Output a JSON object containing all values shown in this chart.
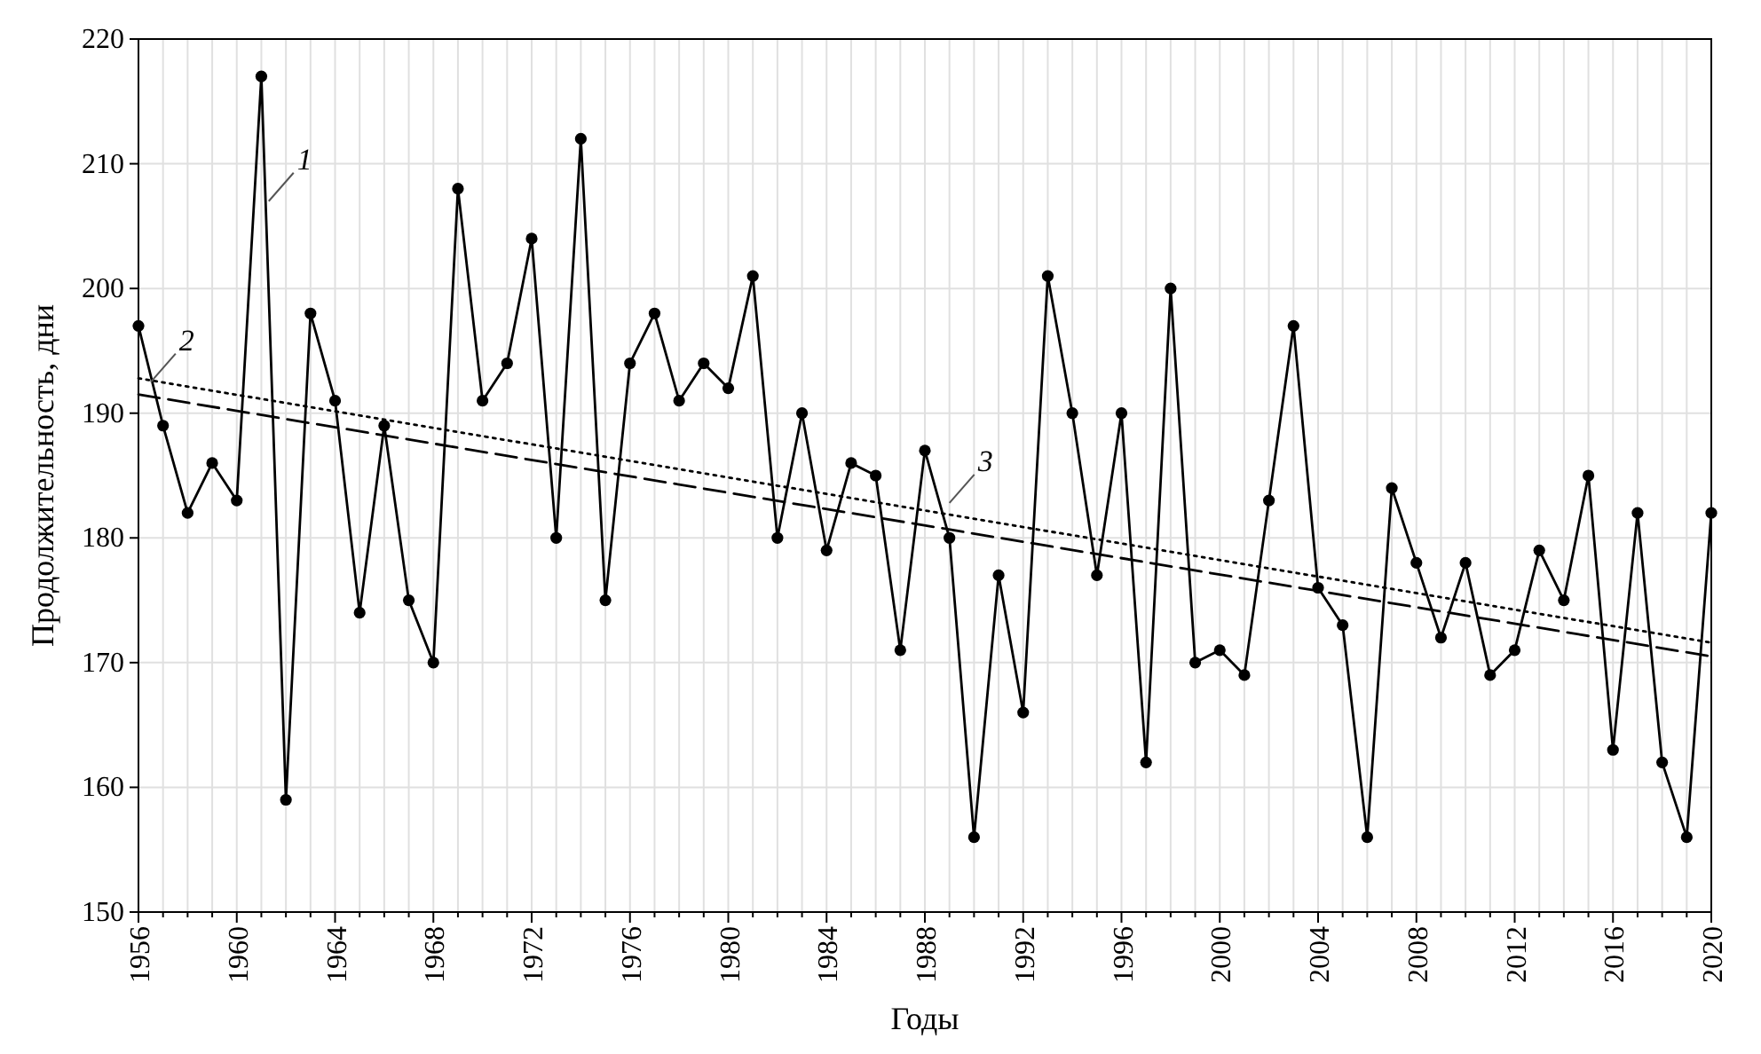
{
  "chart_data": {
    "type": "line",
    "xlabel": "Годы",
    "ylabel": "Продолжительность, дни",
    "x": [
      1956,
      1957,
      1958,
      1959,
      1960,
      1961,
      1962,
      1963,
      1964,
      1965,
      1966,
      1967,
      1968,
      1969,
      1970,
      1971,
      1972,
      1973,
      1974,
      1975,
      1976,
      1977,
      1978,
      1979,
      1980,
      1981,
      1982,
      1983,
      1984,
      1985,
      1986,
      1987,
      1988,
      1989,
      1990,
      1991,
      1992,
      1993,
      1994,
      1995,
      1996,
      1997,
      1998,
      1999,
      2000,
      2001,
      2002,
      2003,
      2004,
      2005,
      2006,
      2007,
      2008,
      2009,
      2010,
      2011,
      2012,
      2013,
      2014,
      2015,
      2016,
      2017,
      2018,
      2019,
      2020
    ],
    "series": [
      {
        "color": "#000000",
        "marker": "circle",
        "line_style": "solid",
        "values": [
          197,
          189,
          182,
          186,
          183,
          217,
          159,
          198,
          191,
          174,
          189,
          175,
          170,
          208,
          191,
          194,
          204,
          180,
          212,
          175,
          194,
          198,
          191,
          194,
          192,
          201,
          180,
          190,
          179,
          186,
          185,
          171,
          187,
          180,
          156,
          177,
          166,
          201,
          190,
          177,
          190,
          162,
          200,
          170,
          171,
          169,
          183,
          197,
          176,
          173,
          156,
          184,
          178,
          172,
          178,
          169,
          171,
          179,
          175,
          185,
          163,
          182,
          162,
          156,
          182
        ]
      },
      {
        "color": "#000000",
        "marker": "none",
        "line_style": "dotted",
        "values": [
          192.8,
          null,
          null,
          null,
          null,
          null,
          null,
          null,
          null,
          null,
          null,
          null,
          null,
          null,
          null,
          null,
          null,
          null,
          null,
          null,
          null,
          null,
          null,
          null,
          null,
          null,
          null,
          null,
          null,
          null,
          null,
          null,
          null,
          null,
          null,
          null,
          null,
          null,
          null,
          null,
          null,
          null,
          null,
          null,
          null,
          null,
          null,
          null,
          null,
          null,
          null,
          null,
          null,
          null,
          null,
          null,
          null,
          null,
          null,
          null,
          null,
          null,
          null,
          null,
          171.6
        ]
      },
      {
        "color": "#000000",
        "marker": "none",
        "line_style": "dashed",
        "values": [
          191.5,
          null,
          null,
          null,
          null,
          null,
          null,
          null,
          null,
          null,
          null,
          null,
          null,
          null,
          null,
          null,
          null,
          null,
          null,
          null,
          null,
          null,
          null,
          null,
          null,
          null,
          null,
          null,
          null,
          null,
          null,
          null,
          null,
          null,
          null,
          null,
          null,
          null,
          null,
          null,
          null,
          null,
          null,
          null,
          null,
          null,
          null,
          null,
          null,
          null,
          null,
          null,
          null,
          null,
          null,
          null,
          null,
          null,
          null,
          null,
          null,
          null,
          null,
          null,
          170.5
        ]
      }
    ],
    "xlim": [
      1956,
      2020
    ],
    "ylim": [
      150,
      220
    ],
    "yticks": [
      150,
      160,
      170,
      180,
      190,
      200,
      210,
      220
    ],
    "xticks": [
      1956,
      {
        "value": 1957,
        "label": null
      },
      {
        "value": 1958,
        "label": null
      },
      {
        "value": 1959,
        "label": null
      },
      1960,
      {
        "value": 1961,
        "label": null
      },
      {
        "value": 1962,
        "label": null
      },
      {
        "value": 1963,
        "label": null
      },
      1964,
      {
        "value": 1965,
        "label": null
      },
      {
        "value": 1966,
        "label": null
      },
      {
        "value": 1967,
        "label": null
      },
      1968,
      {
        "value": 1969,
        "label": null
      },
      {
        "value": 1970,
        "label": null
      },
      {
        "value": 1971,
        "label": null
      },
      1972,
      {
        "value": 1973,
        "label": null
      },
      {
        "value": 1974,
        "label": null
      },
      {
        "value": 1975,
        "label": null
      },
      1976,
      {
        "value": 1977,
        "label": null
      },
      {
        "value": 1978,
        "label": null
      },
      {
        "value": 1979,
        "label": null
      },
      1980,
      {
        "value": 1981,
        "label": null
      },
      {
        "value": 1982,
        "label": null
      },
      {
        "value": 1983,
        "label": null
      },
      1984,
      {
        "value": 1985,
        "label": null
      },
      {
        "value": 1986,
        "label": null
      },
      {
        "value": 1987,
        "label": null
      },
      1988,
      {
        "value": 1989,
        "label": null
      },
      {
        "value": 1990,
        "label": null
      },
      {
        "value": 1991,
        "label": null
      },
      1992,
      {
        "value": 1993,
        "label": null
      },
      {
        "value": 1994,
        "label": null
      },
      {
        "value": 1995,
        "label": null
      },
      1996,
      {
        "value": 1997,
        "label": null
      },
      {
        "value": 1998,
        "label": null
      },
      {
        "value": 1999,
        "label": null
      },
      2000,
      {
        "value": 2001,
        "label": null
      },
      {
        "value": 2002,
        "label": null
      },
      {
        "value": 2003,
        "label": null
      },
      2004,
      {
        "value": 2005,
        "label": null
      },
      {
        "value": 2006,
        "label": null
      },
      {
        "value": 2007,
        "label": null
      },
      2008,
      {
        "value": 2009,
        "label": null
      },
      {
        "value": 2010,
        "label": null
      },
      {
        "value": 2011,
        "label": null
      },
      2012,
      {
        "value": 2013,
        "label": null
      },
      {
        "value": 2014,
        "label": null
      },
      {
        "value": 2015,
        "label": null
      },
      2016,
      {
        "value": 2017,
        "label": null
      },
      {
        "value": 2018,
        "label": null
      },
      {
        "value": 2019,
        "label": null
      },
      2020
    ],
    "grid": true,
    "annotations": [
      {
        "text": "1",
        "x": 1961.3,
        "y": 207
      },
      {
        "text": "2",
        "x": 1956.5,
        "y": 192.5
      },
      {
        "text": "3",
        "x": 1989,
        "y": 182.8
      }
    ]
  }
}
